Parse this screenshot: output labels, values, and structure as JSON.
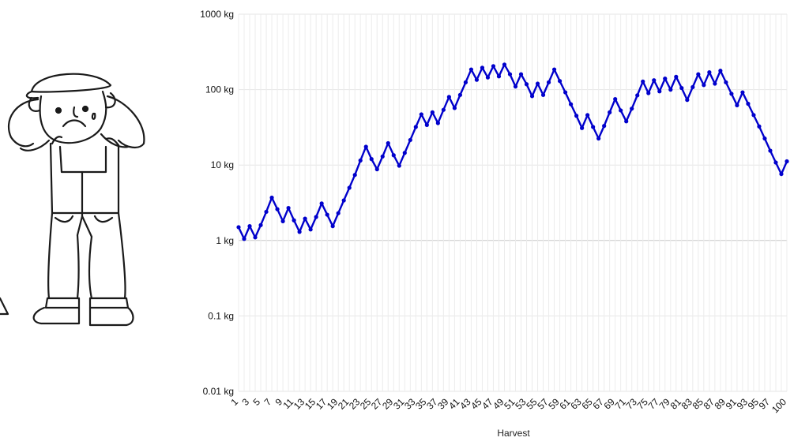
{
  "chart_data": {
    "type": "line",
    "title": "",
    "xlabel": "Harvest",
    "ylabel": "",
    "y_scale": "log",
    "ylim": [
      0.01,
      1000
    ],
    "y_ticks": [
      {
        "value": 0.01,
        "label": "0.01 kg"
      },
      {
        "value": 0.1,
        "label": "0.1 kg"
      },
      {
        "value": 1,
        "label": "1 kg"
      },
      {
        "value": 10,
        "label": "10 kg"
      },
      {
        "value": 100,
        "label": "100 kg"
      },
      {
        "value": 1000,
        "label": "1000 kg"
      }
    ],
    "x_tick_labels": [
      "1",
      "3",
      "5",
      "7",
      "9",
      "11",
      "13",
      "15",
      "17",
      "19",
      "21",
      "23",
      "25",
      "27",
      "29",
      "31",
      "33",
      "35",
      "37",
      "39",
      "41",
      "43",
      "45",
      "47",
      "49",
      "51",
      "53",
      "55",
      "57",
      "59",
      "61",
      "63",
      "65",
      "67",
      "69",
      "71",
      "73",
      "75",
      "77",
      "79",
      "81",
      "83",
      "85",
      "87",
      "89",
      "91",
      "93",
      "95",
      "97",
      "100"
    ],
    "grid": true,
    "line_color": "#0000cc",
    "x": [
      1,
      2,
      3,
      4,
      5,
      6,
      7,
      8,
      9,
      10,
      11,
      12,
      13,
      14,
      15,
      16,
      17,
      18,
      19,
      20,
      21,
      22,
      23,
      24,
      25,
      26,
      27,
      28,
      29,
      30,
      31,
      32,
      33,
      34,
      35,
      36,
      37,
      38,
      39,
      40,
      41,
      42,
      43,
      44,
      45,
      46,
      47,
      48,
      49,
      50,
      51,
      52,
      53,
      54,
      55,
      56,
      57,
      58,
      59,
      60,
      61,
      62,
      63,
      64,
      65,
      66,
      67,
      68,
      69,
      70,
      71,
      72,
      73,
      74,
      75,
      76,
      77,
      78,
      79,
      80,
      81,
      82,
      83,
      84,
      85,
      86,
      87,
      88,
      89,
      90,
      91,
      92,
      93,
      94,
      95,
      96,
      97,
      98,
      99,
      100
    ],
    "series": [
      {
        "values": [
          1.5,
          1.05,
          1.55,
          1.1,
          1.6,
          2.4,
          3.7,
          2.6,
          1.8,
          2.7,
          1.85,
          1.3,
          1.95,
          1.4,
          2.05,
          3.1,
          2.2,
          1.55,
          2.3,
          3.4,
          5.0,
          7.4,
          11.5,
          17.5,
          12.0,
          8.8,
          13.0,
          19.5,
          13.5,
          9.8,
          14.5,
          21.5,
          32.0,
          47.0,
          34.0,
          50.0,
          36.0,
          54.0,
          80.0,
          57.0,
          85.0,
          125.0,
          185.0,
          135.0,
          195.0,
          145.0,
          205.0,
          150.0,
          215.0,
          160.0,
          110.0,
          160.0,
          118.0,
          82.0,
          120.0,
          85.0,
          125.0,
          185.0,
          130.0,
          92.0,
          64.0,
          45.0,
          31.0,
          46.0,
          32.0,
          22.5,
          33.0,
          50.0,
          75.0,
          53.0,
          38.0,
          56.0,
          84.0,
          128.0,
          90.0,
          133.0,
          95.0,
          140.0,
          100.0,
          148.0,
          105.0,
          73.0,
          108.0,
          160.0,
          115.0,
          170.0,
          120.0,
          178.0,
          125.0,
          88.0,
          62.0,
          92.0,
          65.0,
          46.0,
          32.5,
          22.5,
          15.5,
          10.8,
          7.6,
          11.2
        ]
      }
    ]
  }
}
